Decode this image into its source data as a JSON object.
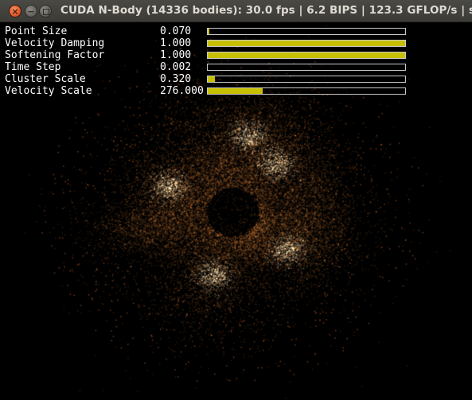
{
  "window": {
    "title": "CUDA N-Body (14336 bodies): 30.0 fps | 6.2 BIPS | 123.3 GFLOP/s | sing",
    "close_glyph": "×",
    "minimize_glyph": "−"
  },
  "params": [
    {
      "label": "Point Size",
      "value": "0.070",
      "fill_fraction": 0.01
    },
    {
      "label": "Velocity Damping",
      "value": "1.000",
      "fill_fraction": 1.0
    },
    {
      "label": "Softening Factor",
      "value": "1.000",
      "fill_fraction": 1.0
    },
    {
      "label": "Time Step",
      "value": "0.002",
      "fill_fraction": 0.0
    },
    {
      "label": "Cluster Scale",
      "value": "0.320",
      "fill_fraction": 0.035
    },
    {
      "label": "Velocity Scale",
      "value": "276.000",
      "fill_fraction": 0.28
    }
  ],
  "colors": {
    "slider_fill": "#c6c000",
    "slider_border": "#c8c8c8",
    "particle_core": "#fff2c8",
    "particle_glow": "#ff9a30",
    "background": "#000000"
  }
}
